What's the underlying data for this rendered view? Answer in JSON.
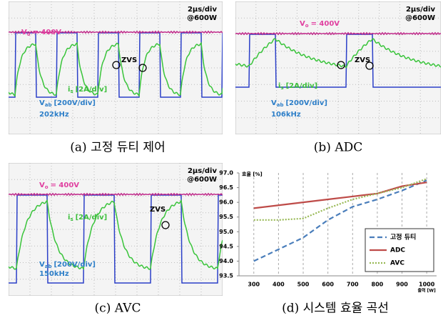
{
  "scopes": [
    {
      "caption": "(a) 고정 듀티 제어",
      "scale": "2μs/div",
      "power": "@600W",
      "vo": {
        "symbol": "V",
        "subscript": "o",
        "text": "= 400V"
      },
      "is": {
        "symbol": "i",
        "subscript": "s",
        "text": "[2A/div]"
      },
      "vab": {
        "symbol": "V",
        "subscript": "ab",
        "text": "[200V/div]"
      },
      "freq": "202kHz",
      "zvs": "ZVS"
    },
    {
      "caption": "(b) ADC",
      "scale": "2μs/div",
      "power": "@600W",
      "vo": {
        "symbol": "V",
        "subscript": "o",
        "text": "= 400V"
      },
      "is": {
        "symbol": "i",
        "subscript": "s",
        "text": "[2A/div]"
      },
      "vab": {
        "symbol": "V",
        "subscript": "ab",
        "text": "[200V/div]"
      },
      "freq": "106kHz",
      "zvs": "ZVS"
    },
    {
      "caption": "(c) AVC",
      "scale": "2μs/div",
      "power": "@600W",
      "vo": {
        "symbol": "V",
        "subscript": "o",
        "text": "= 400V"
      },
      "is": {
        "symbol": "i",
        "subscript": "s",
        "text": "[2A/div]"
      },
      "vab": {
        "symbol": "V",
        "subscript": "ab",
        "text": "[200V/div]"
      },
      "freq": "150kHz",
      "zvs": "ZVS"
    }
  ],
  "chart_caption": "(d) 시스템 효율 곡선",
  "chart_data": {
    "type": "line",
    "ylabel": "효율 [%]",
    "xlabel": "출력 [W]",
    "x": [
      300,
      400,
      500,
      600,
      700,
      800,
      900,
      1000
    ],
    "series": [
      {
        "name": "고정 듀티",
        "color": "#4a7ebb",
        "style": "dashed",
        "values": [
          94.0,
          94.4,
          94.8,
          95.4,
          95.85,
          96.1,
          96.4,
          96.75
        ]
      },
      {
        "name": "ADC",
        "color": "#be4b48",
        "style": "solid",
        "values": [
          95.8,
          95.9,
          96.0,
          96.1,
          96.2,
          96.3,
          96.55,
          96.68
        ]
      },
      {
        "name": "AVC",
        "color": "#98b954",
        "style": "dotted",
        "values": [
          95.4,
          95.4,
          95.45,
          95.8,
          96.1,
          96.3,
          96.5,
          96.8
        ]
      }
    ],
    "xlim": [
      240,
      1040
    ],
    "xticks": [
      300,
      400,
      500,
      600,
      700,
      800,
      900,
      1000
    ],
    "ylim": [
      93.5,
      97.0
    ],
    "yticks": [
      93.5,
      {
        "value": 94.0,
        "label": "94.0"
      },
      94.5,
      {
        "value": 95.0,
        "label": "95.0"
      },
      95.5,
      {
        "value": 96.0,
        "label": "96.0"
      },
      96.5,
      {
        "value": 97.0,
        "label": "97.0"
      }
    ],
    "grid": "x",
    "legend": "lower right"
  }
}
